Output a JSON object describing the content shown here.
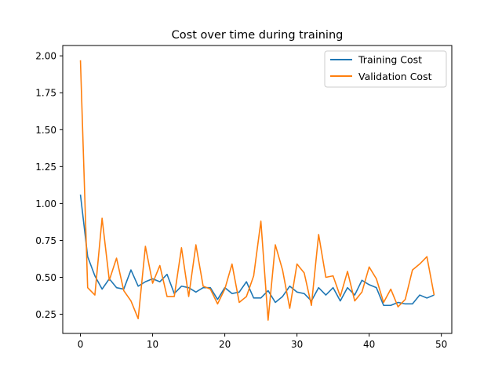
{
  "chart_data": {
    "type": "line",
    "title": "Cost over time during training",
    "xlabel": "",
    "ylabel": "",
    "xlim": [
      -2.45,
      51.45
    ],
    "ylim": [
      0.12,
      2.07
    ],
    "xticks": [
      0,
      10,
      20,
      30,
      40,
      50
    ],
    "yticks": [
      0.25,
      0.5,
      0.75,
      1.0,
      1.25,
      1.5,
      1.75,
      2.0
    ],
    "ytick_labels": [
      "0.25",
      "0.50",
      "0.75",
      "1.00",
      "1.25",
      "1.50",
      "1.75",
      "2.00"
    ],
    "grid": false,
    "legend_position": "top-right",
    "x": [
      0,
      1,
      2,
      3,
      4,
      5,
      6,
      7,
      8,
      9,
      10,
      11,
      12,
      13,
      14,
      15,
      16,
      17,
      18,
      19,
      20,
      21,
      22,
      23,
      24,
      25,
      26,
      27,
      28,
      29,
      30,
      31,
      32,
      33,
      34,
      35,
      36,
      37,
      38,
      39,
      40,
      41,
      42,
      43,
      44,
      45,
      46,
      47,
      48,
      49
    ],
    "series": [
      {
        "name": "Training Cost",
        "color": "#1f77b4",
        "values": [
          1.06,
          0.64,
          0.51,
          0.42,
          0.49,
          0.43,
          0.42,
          0.55,
          0.44,
          0.47,
          0.49,
          0.47,
          0.52,
          0.39,
          0.44,
          0.43,
          0.4,
          0.43,
          0.43,
          0.35,
          0.43,
          0.39,
          0.4,
          0.47,
          0.36,
          0.36,
          0.41,
          0.33,
          0.37,
          0.44,
          0.4,
          0.39,
          0.34,
          0.43,
          0.38,
          0.43,
          0.34,
          0.43,
          0.38,
          0.48,
          0.45,
          0.43,
          0.31,
          0.31,
          0.33,
          0.32,
          0.32,
          0.38,
          0.36,
          0.38
        ]
      },
      {
        "name": "Validation Cost",
        "color": "#ff7f0e",
        "values": [
          1.97,
          0.43,
          0.38,
          0.9,
          0.48,
          0.63,
          0.41,
          0.34,
          0.22,
          0.71,
          0.46,
          0.58,
          0.37,
          0.37,
          0.7,
          0.37,
          0.72,
          0.44,
          0.42,
          0.32,
          0.42,
          0.59,
          0.33,
          0.37,
          0.51,
          0.88,
          0.21,
          0.72,
          0.55,
          0.29,
          0.59,
          0.53,
          0.31,
          0.79,
          0.5,
          0.51,
          0.37,
          0.54,
          0.34,
          0.4,
          0.57,
          0.49,
          0.33,
          0.42,
          0.3,
          0.35,
          0.55,
          0.59,
          0.64,
          0.38
        ]
      }
    ]
  }
}
